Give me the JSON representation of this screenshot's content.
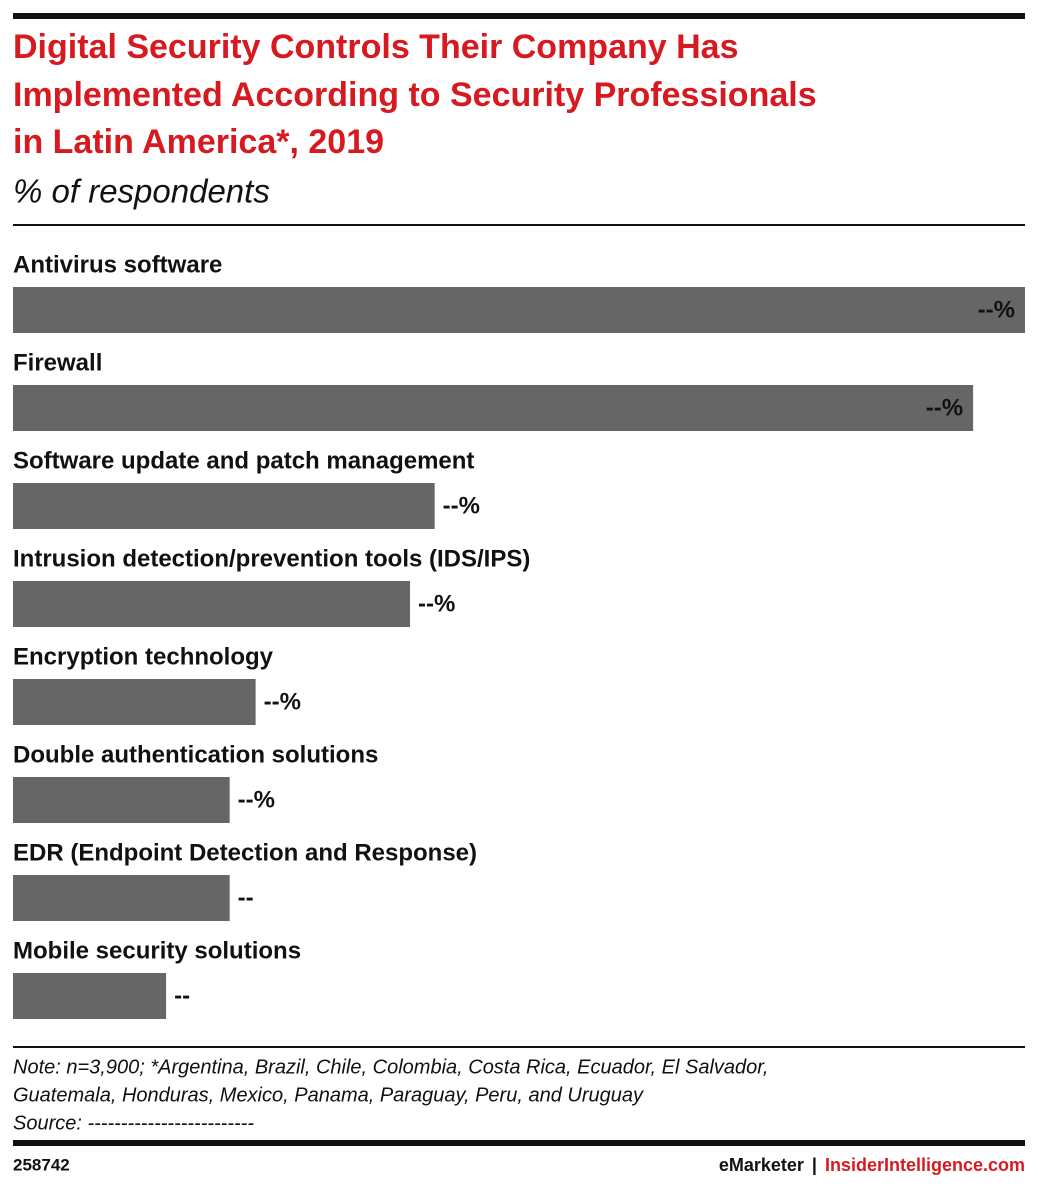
{
  "chart_data": {
    "type": "hbar",
    "title": [
      "Digital Security Controls Their Company Has",
      "Implemented According to Security Professionals",
      "in Latin America*, 2019"
    ],
    "subtitle": "% of respondents",
    "categories": [
      "Antivirus software",
      "Firewall",
      "Software update and patch management",
      "Intrusion detection/prevention tools (IDS/IPS)",
      "Encryption technology",
      "Double authentication solutions",
      "EDR (Endpoint Detection and Response)",
      "Mobile security solutions"
    ],
    "values": [
      78,
      74,
      32.5,
      30.6,
      18.7,
      16.7,
      16.7,
      11.8
    ],
    "value_labels": [
      "--%",
      "--%",
      "--%",
      "--%",
      "--%",
      "--%",
      "--",
      "--"
    ],
    "color": "#666666"
  },
  "footer": {
    "note": [
      "Note: n=3,900; *Argentina, Brazil, Chile, Colombia, Costa Rica, Ecuador, El Salvador,",
      "Guatemala, Honduras, Mexico, Panama, Paraguay, Peru, and Uruguay"
    ],
    "source": "Source: -------------------------",
    "id": "258742",
    "brand": "eMarketer",
    "separator": "|",
    "site": "InsiderIntelligence.com"
  }
}
